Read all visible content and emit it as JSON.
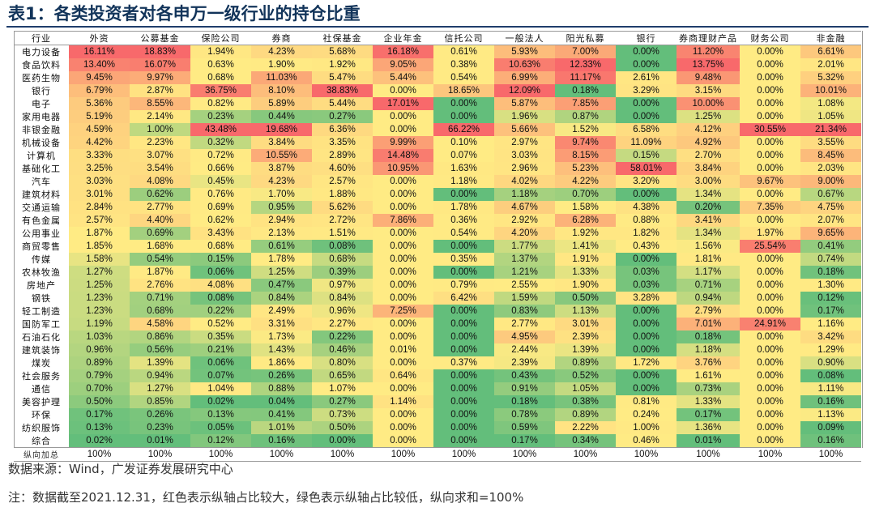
{
  "title": "表1：各类投资者对各申万一级行业的持仓比重",
  "table": {
    "columns": [
      "行业",
      "外资",
      "公募基金",
      "保险公司",
      "券商",
      "社保基金",
      "企业年金",
      "信托公司",
      "一般法人",
      "阳光私募",
      "银行",
      "券商理财产品",
      "财务公司",
      "非金融"
    ],
    "rows": [
      {
        "label": "电力设备",
        "values": [
          "16.11%",
          "18.83%",
          "1.94%",
          "4.23%",
          "5.68%",
          "16.18%",
          "0.61%",
          "5.93%",
          "7.00%",
          "0.00%",
          "11.20%",
          "0.00%",
          "6.61%"
        ]
      },
      {
        "label": "食品饮料",
        "values": [
          "13.40%",
          "16.07%",
          "0.63%",
          "1.90%",
          "1.92%",
          "9.05%",
          "0.38%",
          "10.63%",
          "12.33%",
          "0.00%",
          "13.75%",
          "0.00%",
          "2.01%"
        ]
      },
      {
        "label": "医药生物",
        "values": [
          "9.45%",
          "9.97%",
          "0.68%",
          "11.03%",
          "5.47%",
          "5.44%",
          "0.54%",
          "6.99%",
          "11.17%",
          "2.61%",
          "9.48%",
          "0.00%",
          "5.32%"
        ]
      },
      {
        "label": "银行",
        "values": [
          "6.79%",
          "2.87%",
          "36.75%",
          "8.10%",
          "38.83%",
          "0.00%",
          "18.65%",
          "12.09%",
          "0.18%",
          "3.29%",
          "3.15%",
          "0.00%",
          "10.01%"
        ]
      },
      {
        "label": "电子",
        "values": [
          "5.36%",
          "8.55%",
          "0.82%",
          "5.89%",
          "5.44%",
          "17.01%",
          "0.00%",
          "5.87%",
          "7.85%",
          "0.00%",
          "10.00%",
          "0.00%",
          "1.08%"
        ]
      },
      {
        "label": "家用电器",
        "values": [
          "5.19%",
          "2.14%",
          "0.23%",
          "0.44%",
          "0.27%",
          "0.00%",
          "0.00%",
          "1.96%",
          "0.87%",
          "0.00%",
          "1.25%",
          "0.00%",
          "1.05%"
        ]
      },
      {
        "label": "非银金融",
        "values": [
          "4.59%",
          "1.00%",
          "43.48%",
          "19.68%",
          "6.36%",
          "0.00%",
          "66.22%",
          "5.66%",
          "1.52%",
          "6.58%",
          "4.12%",
          "30.55%",
          "21.34%"
        ]
      },
      {
        "label": "机械设备",
        "values": [
          "4.42%",
          "2.23%",
          "0.32%",
          "3.84%",
          "3.35%",
          "9.99%",
          "0.10%",
          "2.97%",
          "9.74%",
          "11.09%",
          "4.92%",
          "0.00%",
          "3.55%"
        ]
      },
      {
        "label": "计算机",
        "values": [
          "3.33%",
          "3.07%",
          "0.72%",
          "10.55%",
          "2.89%",
          "14.48%",
          "0.07%",
          "3.03%",
          "8.15%",
          "0.15%",
          "2.70%",
          "0.00%",
          "8.45%"
        ]
      },
      {
        "label": "基础化工",
        "values": [
          "3.25%",
          "3.54%",
          "0.66%",
          "3.87%",
          "4.60%",
          "10.95%",
          "1.63%",
          "2.96%",
          "5.23%",
          "58.01%",
          "3.84%",
          "0.00%",
          "2.03%"
        ]
      },
      {
        "label": "汽车",
        "values": [
          "3.03%",
          "4.08%",
          "0.45%",
          "4.23%",
          "2.57%",
          "0.00%",
          "1.18%",
          "4.02%",
          "4.22%",
          "3.20%",
          "3.00%",
          "9.67%",
          "9.00%"
        ]
      },
      {
        "label": "建筑材料",
        "values": [
          "3.01%",
          "0.62%",
          "0.76%",
          "1.70%",
          "1.88%",
          "0.00%",
          "0.00%",
          "1.18%",
          "0.70%",
          "0.00%",
          "1.34%",
          "0.00%",
          "0.67%"
        ]
      },
      {
        "label": "交通运输",
        "values": [
          "2.84%",
          "2.77%",
          "0.69%",
          "0.95%",
          "5.62%",
          "0.00%",
          "1.78%",
          "4.67%",
          "1.58%",
          "4.38%",
          "0.20%",
          "7.35%",
          "4.75%"
        ]
      },
      {
        "label": "有色金属",
        "values": [
          "2.57%",
          "4.40%",
          "0.62%",
          "2.94%",
          "2.72%",
          "7.86%",
          "0.36%",
          "2.92%",
          "6.28%",
          "0.88%",
          "3.41%",
          "0.00%",
          "2.07%"
        ]
      },
      {
        "label": "公用事业",
        "values": [
          "1.87%",
          "0.69%",
          "3.43%",
          "2.13%",
          "1.51%",
          "0.00%",
          "0.54%",
          "4.20%",
          "1.92%",
          "1.82%",
          "1.34%",
          "1.97%",
          "9.65%"
        ]
      },
      {
        "label": "商贸零售",
        "values": [
          "1.85%",
          "1.68%",
          "0.68%",
          "0.61%",
          "0.08%",
          "0.00%",
          "0.00%",
          "1.77%",
          "1.41%",
          "0.43%",
          "1.56%",
          "25.54%",
          "0.41%"
        ]
      },
      {
        "label": "传媒",
        "values": [
          "1.58%",
          "0.54%",
          "0.15%",
          "1.78%",
          "0.68%",
          "0.00%",
          "0.35%",
          "1.37%",
          "1.91%",
          "0.00%",
          "1.81%",
          "0.00%",
          "0.74%"
        ]
      },
      {
        "label": "农林牧渔",
        "values": [
          "1.27%",
          "1.87%",
          "0.06%",
          "1.25%",
          "0.39%",
          "0.00%",
          "0.00%",
          "1.21%",
          "1.33%",
          "0.03%",
          "1.17%",
          "0.00%",
          "0.18%"
        ]
      },
      {
        "label": "房地产",
        "values": [
          "1.25%",
          "2.76%",
          "4.08%",
          "0.47%",
          "0.97%",
          "0.00%",
          "0.79%",
          "2.55%",
          "1.90%",
          "0.03%",
          "0.71%",
          "0.00%",
          "1.30%"
        ]
      },
      {
        "label": "钢铁",
        "values": [
          "1.23%",
          "0.71%",
          "0.08%",
          "0.84%",
          "0.84%",
          "0.00%",
          "6.42%",
          "1.59%",
          "0.50%",
          "3.28%",
          "0.94%",
          "0.00%",
          "0.12%"
        ]
      },
      {
        "label": "轻工制造",
        "values": [
          "1.23%",
          "0.68%",
          "0.22%",
          "2.49%",
          "0.96%",
          "7.25%",
          "0.00%",
          "0.83%",
          "1.13%",
          "0.00%",
          "2.79%",
          "0.00%",
          "0.17%"
        ]
      },
      {
        "label": "国防军工",
        "values": [
          "1.19%",
          "4.58%",
          "0.52%",
          "3.31%",
          "2.27%",
          "0.00%",
          "0.00%",
          "2.77%",
          "3.01%",
          "0.00%",
          "7.01%",
          "24.91%",
          "1.16%"
        ]
      },
      {
        "label": "石油石化",
        "values": [
          "1.03%",
          "0.86%",
          "0.35%",
          "1.73%",
          "0.22%",
          "0.00%",
          "0.00%",
          "4.95%",
          "2.39%",
          "0.00%",
          "0.18%",
          "0.00%",
          "3.42%"
        ]
      },
      {
        "label": "建筑装饰",
        "values": [
          "0.96%",
          "0.56%",
          "0.21%",
          "1.43%",
          "0.46%",
          "0.01%",
          "0.00%",
          "2.44%",
          "1.39%",
          "0.00%",
          "1.18%",
          "0.00%",
          "1.29%"
        ]
      },
      {
        "label": "煤炭",
        "values": [
          "0.89%",
          "1.39%",
          "0.06%",
          "1.86%",
          "0.80%",
          "0.00%",
          "0.37%",
          "2.39%",
          "0.89%",
          "1.72%",
          "3.76%",
          "0.00%",
          "0.90%"
        ]
      },
      {
        "label": "社会服务",
        "values": [
          "0.79%",
          "0.94%",
          "0.07%",
          "0.26%",
          "0.65%",
          "0.64%",
          "0.00%",
          "0.43%",
          "0.52%",
          "0.00%",
          "1.61%",
          "0.00%",
          "0.08%"
        ]
      },
      {
        "label": "通信",
        "values": [
          "0.70%",
          "1.27%",
          "1.04%",
          "0.88%",
          "1.07%",
          "0.00%",
          "0.00%",
          "0.91%",
          "1.05%",
          "0.00%",
          "0.73%",
          "0.00%",
          "1.11%"
        ]
      },
      {
        "label": "美容护理",
        "values": [
          "0.50%",
          "0.85%",
          "0.02%",
          "0.04%",
          "0.27%",
          "1.14%",
          "0.00%",
          "0.18%",
          "0.38%",
          "0.81%",
          "1.33%",
          "0.00%",
          "0.16%"
        ]
      },
      {
        "label": "环保",
        "values": [
          "0.17%",
          "0.26%",
          "0.13%",
          "0.41%",
          "0.73%",
          "0.00%",
          "0.00%",
          "0.78%",
          "0.89%",
          "0.24%",
          "0.17%",
          "0.00%",
          "1.13%"
        ]
      },
      {
        "label": "纺织服饰",
        "values": [
          "0.13%",
          "0.23%",
          "0.05%",
          "1.01%",
          "0.50%",
          "0.00%",
          "0.00%",
          "0.59%",
          "2.22%",
          "1.00%",
          "1.36%",
          "0.00%",
          "0.09%"
        ]
      },
      {
        "label": "综合",
        "values": [
          "0.02%",
          "0.01%",
          "0.12%",
          "0.16%",
          "0.00%",
          "0.00%",
          "0.00%",
          "0.17%",
          "0.34%",
          "0.46%",
          "0.01%",
          "0.00%",
          "0.16%"
        ]
      }
    ],
    "total_row": {
      "label": "纵向加总",
      "values": [
        "100%",
        "100%",
        "100%",
        "100%",
        "100%",
        "100%",
        "100%",
        "100%",
        "100%",
        "100%",
        "100%",
        "100%",
        "100%"
      ]
    }
  },
  "source": "数据来源：Wind，广发证券发展研究中心",
  "note": "注：数据截至2021.12.31，红色表示纵轴占比较大，绿色表示纵轴占比较低，纵向求和=100%",
  "colors": {
    "high": "#f8696b",
    "mid": "#ffeb84",
    "low": "#63be7b",
    "title": "#12345a"
  }
}
